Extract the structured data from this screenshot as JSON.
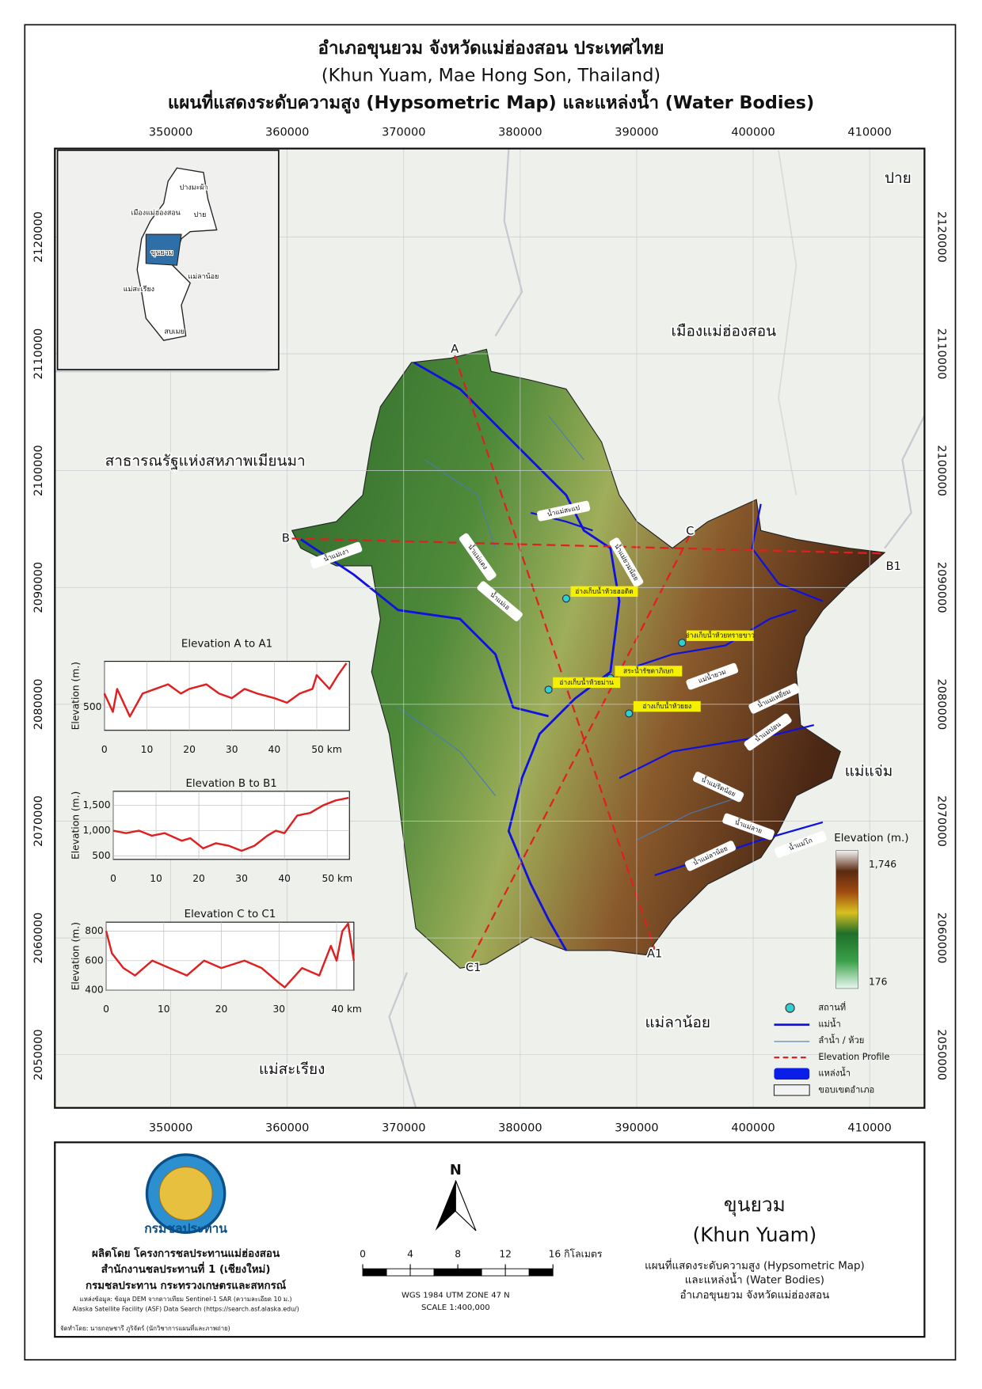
{
  "header": {
    "title_lines": [
      "อำเภอขุนยวม จังหวัดแม่ฮ่องสอน ประเทศไทย",
      "(Khun Yuam, Mae Hong Son, Thailand)",
      "แผนที่แสดงระดับความสูง (Hypsometric Map) และแหล่งน้ำ (Water Bodies)"
    ]
  },
  "grid": {
    "eastings": [
      350000,
      360000,
      370000,
      380000,
      390000,
      400000,
      410000
    ],
    "northings": [
      2050000,
      2060000,
      2070000,
      2080000,
      2090000,
      2100000,
      2110000,
      2120000
    ]
  },
  "places": [
    "ปาย",
    "เมืองแม่ฮ่องสอน",
    "สาธารณรัฐแห่งสหภาพเมียนมา",
    "แม่แจ่ม",
    "แม่ลาน้อย",
    "แม่สะเรียง"
  ],
  "inset": {
    "labels": [
      "ปางมะผ้า",
      "เมืองแม่ฮ่องสอน",
      "ปาย",
      "ขุนยวม",
      "แม่ลาน้อย",
      "แม่สะเรียง",
      "สบเมย"
    ]
  },
  "profile_points": [
    "A",
    "A1",
    "B",
    "B1",
    "C",
    "C1"
  ],
  "rivers": [
    "น้ำแม่สะแป",
    "น้ำแม่ยวมน้อย",
    "น้ำแม่เงา",
    "น้ำแม่แตง",
    "น้ำแม่เอ",
    "แม่น้ำยวม",
    "น้ำแม่เหยี่ยม",
    "น้ำแม่ปอน",
    "น้ำแม่ริดน้อย",
    "น้ำแม่ลาย",
    "น้ำแม่ลาน้อย",
    "น้ำแม่โก"
  ],
  "water_bodies": [
    "อ่างเก็บน้ำห้วยฮอดิด",
    "อ่างเก็บน้ำห้วยทรายขาว",
    "สระน้ำรัชดาภิเษก",
    "อ่างเก็บน้ำห้วยม่าน",
    "อ่างเก็บน้ำห้วยยง"
  ],
  "profiles": [
    {
      "title": "Elevation A to A1",
      "y_label": "Elevation (m.)",
      "xlim": [
        0,
        57.7
      ],
      "ylim": [
        250,
        1000
      ],
      "xticks": [
        0,
        10,
        20,
        30,
        40,
        {
          "value": 50,
          "label": "50 km"
        }
      ],
      "yticks": [
        500
      ],
      "x": [
        0,
        2,
        3,
        6,
        9,
        12,
        15,
        18,
        20,
        24,
        27,
        30,
        33,
        36,
        40,
        43,
        46,
        49,
        50,
        53,
        55,
        57
      ],
      "values": [
        650,
        450,
        700,
        400,
        650,
        700,
        750,
        650,
        700,
        750,
        650,
        600,
        700,
        650,
        600,
        550,
        650,
        700,
        850,
        700,
        850,
        980
      ]
    },
    {
      "title": "Elevation B to B1",
      "y_label": "Elevation (m.)",
      "xlim": [
        0,
        55.2
      ],
      "ylim": [
        430,
        1780
      ],
      "xticks": [
        0,
        10,
        20,
        30,
        40,
        {
          "value": 50,
          "label": "50 km"
        }
      ],
      "yticks": [
        500,
        {
          "value": 1000,
          "label": "1,000"
        },
        {
          "value": 1500,
          "label": "1,500"
        }
      ],
      "x": [
        0,
        3,
        6,
        9,
        12,
        16,
        18,
        21,
        24,
        27,
        30,
        33,
        36,
        38,
        40,
        43,
        46,
        49,
        52,
        55
      ],
      "values": [
        1000,
        950,
        1000,
        900,
        950,
        800,
        850,
        650,
        750,
        700,
        600,
        700,
        900,
        1000,
        950,
        1300,
        1350,
        1500,
        1600,
        1650
      ]
    },
    {
      "title": "Elevation C to C1",
      "y_label": "Elevation (m.)",
      "xlim": [
        0,
        43
      ],
      "ylim": [
        400,
        860
      ],
      "xticks": [
        0,
        10,
        20,
        30,
        {
          "value": 40,
          "label": "40 km"
        }
      ],
      "yticks": [
        400,
        600,
        800
      ],
      "x": [
        0,
        1,
        3,
        5,
        8,
        11,
        14,
        17,
        20,
        24,
        27,
        30,
        31,
        34,
        37,
        39,
        40,
        41,
        42,
        43
      ],
      "values": [
        800,
        650,
        550,
        500,
        600,
        550,
        500,
        600,
        550,
        600,
        550,
        450,
        420,
        550,
        500,
        700,
        600,
        800,
        850,
        600
      ]
    }
  ],
  "legend": {
    "elevation_title": "Elevation (m.)",
    "elevation_max": {
      "value": 1746,
      "label": "1,746"
    },
    "elevation_min": 176,
    "items": [
      "สถานที่",
      "แม่น้ำ",
      "ลำน้ำ / ห้วย",
      "Elevation Profile",
      "แหล่งน้ำ",
      "ขอบเขตอำเภอ"
    ]
  },
  "footer": {
    "logo_text": "กรมชลประทาน",
    "producer": [
      "ผลิตโดย โครงการชลประทานแม่ฮ่องสอน",
      "สำนักงานชลประทานที่ 1 (เชียงใหม่)",
      "กรมชลประทาน กระทรวงเกษตรและสหกรณ์"
    ],
    "sources": [
      "แหล่งข้อมูล: ข้อมูล DEM จากดาวเทียม Sentinel-1 SAR (ความละเอียด 10 ม.)",
      "Alaska Satellite Facility (ASF) Data Search (https://search.asf.alaska.edu/)"
    ],
    "compiled_by": "จัดทำโดย: นายกฤษชารี ภูริจัตร์ (นักวิชาการแผนที่และภาพถ่าย)",
    "north": "N",
    "scale_ticks": [
      0,
      4,
      8,
      12,
      {
        "value": 16,
        "label": "16 กิโลเมตร"
      }
    ],
    "projection": "WGS 1984 UTM ZONE 47 N",
    "scale": "SCALE 1:400,000",
    "name_th": "ขุนยวม",
    "name_en": "(Khun Yuam)",
    "description": [
      "แผนที่แสดงระดับความสูง (Hypsometric Map)",
      "และแหล่งน้ำ (Water Bodies)",
      "อำเภอขุนยวม จังหวัดแม่ฮ่องสอน"
    ]
  }
}
